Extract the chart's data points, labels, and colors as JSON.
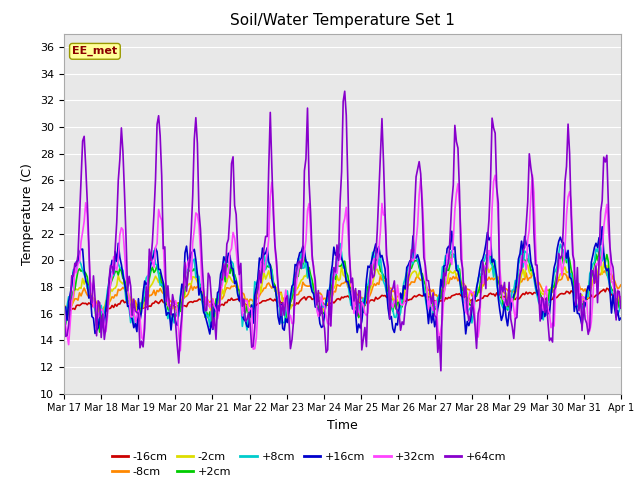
{
  "title": "Soil/Water Temperature Set 1",
  "xlabel": "Time",
  "ylabel": "Temperature (C)",
  "ylim": [
    10,
    37
  ],
  "yticks": [
    10,
    12,
    14,
    16,
    18,
    20,
    22,
    24,
    26,
    28,
    30,
    32,
    34,
    36
  ],
  "background_color": "#ffffff",
  "plot_bg_color": "#e8e8e8",
  "series": {
    "-16cm": {
      "color": "#cc0000",
      "lw": 1.2
    },
    "-8cm": {
      "color": "#ff8800",
      "lw": 1.2
    },
    "-2cm": {
      "color": "#dddd00",
      "lw": 1.2
    },
    "+2cm": {
      "color": "#00cc00",
      "lw": 1.2
    },
    "+8cm": {
      "color": "#00cccc",
      "lw": 1.2
    },
    "+16cm": {
      "color": "#0000cc",
      "lw": 1.2
    },
    "+32cm": {
      "color": "#ff44ff",
      "lw": 1.2
    },
    "+64cm": {
      "color": "#8800cc",
      "lw": 1.2
    }
  },
  "xtick_labels": [
    "Mar 17",
    "Mar 18",
    "Mar 19",
    "Mar 20",
    "Mar 21",
    "Mar 22",
    "Mar 23",
    "Mar 24",
    "Mar 25",
    "Mar 26",
    "Mar 27",
    "Mar 28",
    "Mar 29",
    "Mar 30",
    "Mar 31",
    "Apr 1"
  ],
  "watermark": "EE_met",
  "watermark_color": "#8b0000",
  "watermark_bg": "#ffff99",
  "legend_row1": [
    "-16cm",
    "-8cm",
    "-2cm",
    "+2cm",
    "+8cm",
    "+16cm"
  ],
  "legend_row2": [
    "+32cm",
    "+64cm"
  ]
}
